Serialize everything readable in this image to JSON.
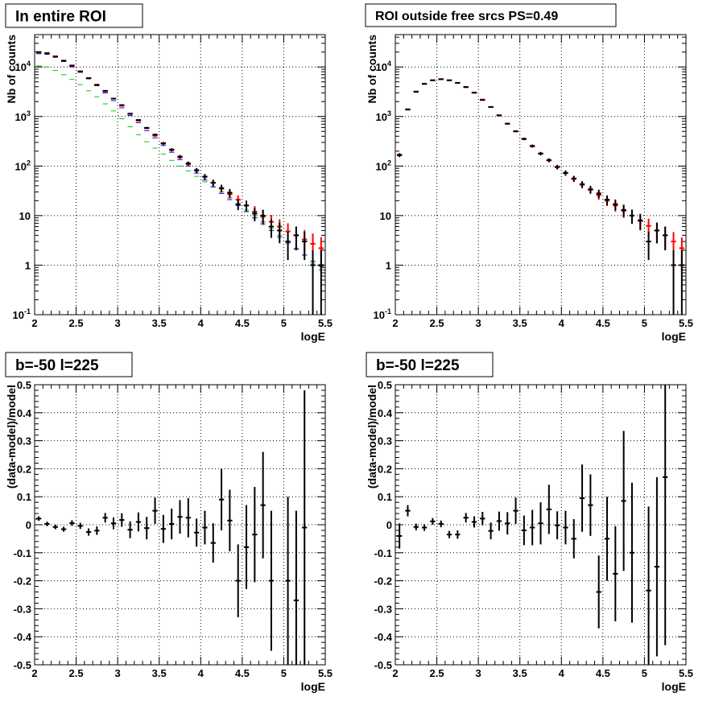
{
  "chart_data": [
    {
      "type": "errorbar",
      "title": "In entire ROI",
      "xlabel": "logE",
      "ylabel": "Nb of counts",
      "xlim": [
        2,
        5.5
      ],
      "ylim": [
        0.1,
        45000
      ],
      "ylog": true,
      "grid": true,
      "x_ticks": [
        "2",
        "2.5",
        "3",
        "3.5",
        "4",
        "4.5",
        "5",
        "5.5"
      ],
      "y_ticks": [
        {
          "base": "10",
          "exp": "-1",
          "value": 0.1
        },
        {
          "base": "1",
          "exp": "",
          "value": 1
        },
        {
          "base": "10",
          "exp": "",
          "value": 10
        },
        {
          "base": "10",
          "exp": "2",
          "value": 100
        },
        {
          "base": "10",
          "exp": "3",
          "value": 1000
        },
        {
          "base": "10",
          "exp": "4",
          "value": 10000
        }
      ],
      "bin_width": 0.1,
      "series": [
        {
          "color": "#00cc00",
          "x": [
            2.05,
            2.15,
            2.25,
            2.35,
            2.45,
            2.55,
            2.65,
            2.75,
            2.85,
            2.95,
            3.05,
            3.15,
            3.25,
            3.35,
            3.45,
            3.55,
            3.65,
            3.75,
            3.85,
            3.95,
            4.05,
            4.15,
            4.25,
            4.35,
            4.45,
            4.55,
            4.65,
            4.75,
            4.85,
            4.95,
            5.05,
            5.15,
            5.25,
            5.35,
            5.45
          ],
          "y": [
            10500,
            10000,
            8500,
            7000,
            5600,
            4400,
            3300,
            2500,
            1800,
            1300,
            900,
            620,
            430,
            310,
            230,
            175,
            130,
            100,
            80,
            62,
            48,
            38,
            30,
            23,
            17,
            13,
            10,
            7.5,
            5.5,
            4,
            3,
            2.2,
            1.6,
            1.1,
            0.8
          ]
        },
        {
          "color": "#0000ff",
          "x": [
            2.05,
            2.15,
            2.25,
            2.35,
            2.45,
            2.55,
            2.65,
            2.75,
            2.85,
            2.95,
            3.05,
            3.15,
            3.25,
            3.35,
            3.45,
            3.55,
            3.65,
            3.75,
            3.85,
            3.95,
            4.05,
            4.15,
            4.25,
            4.35,
            4.45,
            4.55,
            4.65,
            4.75,
            4.85,
            4.95,
            5.05,
            5.15,
            5.25,
            5.35,
            5.45
          ],
          "y": [
            18500,
            18000,
            16000,
            13000,
            10000,
            7800,
            5800,
            4200,
            3000,
            2100,
            1500,
            1050,
            750,
            520,
            370,
            260,
            190,
            135,
            100,
            72,
            52,
            38,
            28,
            21,
            16,
            12,
            9,
            6.8,
            5,
            3.7,
            2.8,
            2.1,
            1.6,
            1.2,
            0.95
          ]
        },
        {
          "color": "#ff0000",
          "x": [
            2.05,
            2.15,
            2.25,
            2.35,
            2.45,
            2.55,
            2.65,
            2.75,
            2.85,
            2.95,
            3.05,
            3.15,
            3.25,
            3.35,
            3.45,
            3.55,
            3.65,
            3.75,
            3.85,
            3.95,
            4.05,
            4.15,
            4.25,
            4.35,
            4.45,
            4.55,
            4.65,
            4.75,
            4.85,
            4.95,
            5.05,
            5.15,
            5.25,
            5.35,
            5.45
          ],
          "y": [
            19500,
            19000,
            16500,
            13500,
            10500,
            8200,
            6000,
            4400,
            3200,
            2300,
            1650,
            1150,
            820,
            580,
            410,
            290,
            210,
            150,
            110,
            82,
            61,
            46,
            35,
            27,
            21,
            16,
            12,
            9.5,
            7.5,
            6,
            4.8,
            4,
            3.3,
            2.7,
            2.2
          ],
          "yerr_rel": [
            0.01,
            0.01,
            0.01,
            0.01,
            0.01,
            0.01,
            0.015,
            0.015,
            0.02,
            0.02,
            0.025,
            0.03,
            0.035,
            0.04,
            0.05,
            0.06,
            0.07,
            0.08,
            0.1,
            0.11,
            0.13,
            0.15,
            0.17,
            0.19,
            0.22,
            0.25,
            0.29,
            0.32,
            0.37,
            0.41,
            0.46,
            0.5,
            0.55,
            0.61,
            0.67
          ]
        },
        {
          "color": "#000000",
          "x": [
            2.05,
            2.15,
            2.25,
            2.35,
            2.45,
            2.55,
            2.65,
            2.75,
            2.85,
            2.95,
            3.05,
            3.15,
            3.25,
            3.35,
            3.45,
            3.55,
            3.65,
            3.75,
            3.85,
            3.95,
            4.05,
            4.15,
            4.25,
            4.35,
            4.45,
            4.55,
            4.65,
            4.75,
            4.85,
            4.95,
            5.05,
            5.15,
            5.25,
            5.35,
            5.45
          ],
          "y": [
            20000,
            19000,
            16000,
            13200,
            10700,
            8100,
            5900,
            4300,
            3300,
            2300,
            1700,
            1130,
            850,
            590,
            430,
            285,
            215,
            155,
            113,
            82,
            61,
            46,
            36,
            29,
            17,
            16,
            11,
            10,
            6,
            5,
            3,
            4,
            3,
            1,
            1
          ],
          "yerr_rel": [
            0.007,
            0.007,
            0.008,
            0.009,
            0.01,
            0.011,
            0.013,
            0.015,
            0.017,
            0.021,
            0.024,
            0.03,
            0.034,
            0.041,
            0.048,
            0.059,
            0.068,
            0.08,
            0.094,
            0.11,
            0.128,
            0.147,
            0.167,
            0.186,
            0.243,
            0.25,
            0.3,
            0.316,
            0.408,
            0.447,
            0.577,
            0.5,
            0.577,
            1.0,
            1.0
          ]
        }
      ]
    },
    {
      "type": "errorbar",
      "title": "ROI outside free srcs PS=0.49",
      "xlabel": "logE",
      "ylabel": "Nb of counts",
      "xlim": [
        2,
        5.5
      ],
      "ylim": [
        0.1,
        45000
      ],
      "ylog": true,
      "grid": true,
      "x_ticks": [
        "2",
        "2.5",
        "3",
        "3.5",
        "4",
        "4.5",
        "5",
        "5.5"
      ],
      "y_ticks": [
        {
          "base": "10",
          "exp": "-1",
          "value": 0.1
        },
        {
          "base": "1",
          "exp": "",
          "value": 1
        },
        {
          "base": "10",
          "exp": "",
          "value": 10
        },
        {
          "base": "10",
          "exp": "2",
          "value": 100
        },
        {
          "base": "10",
          "exp": "3",
          "value": 1000
        },
        {
          "base": "10",
          "exp": "4",
          "value": 10000
        }
      ],
      "bin_width": 0.1,
      "series": [
        {
          "color": "#ff0000",
          "x": [
            2.05,
            2.15,
            2.25,
            2.35,
            2.45,
            2.55,
            2.65,
            2.75,
            2.85,
            2.95,
            3.05,
            3.15,
            3.25,
            3.35,
            3.45,
            3.55,
            3.65,
            3.75,
            3.85,
            3.95,
            4.05,
            4.15,
            4.25,
            4.35,
            4.45,
            4.55,
            4.65,
            4.75,
            4.85,
            4.95,
            5.05,
            5.15,
            5.25,
            5.35,
            5.45
          ],
          "y": [
            170,
            1400,
            3200,
            4600,
            5400,
            5700,
            5400,
            4800,
            3900,
            3000,
            2200,
            1550,
            1050,
            720,
            500,
            350,
            250,
            180,
            130,
            95,
            72,
            55,
            42,
            33,
            26,
            20,
            16,
            12.5,
            10,
            7.8,
            6.2,
            5,
            4,
            3,
            2.2
          ],
          "yerr_rel": [
            0.077,
            0.027,
            0.018,
            0.015,
            0.014,
            0.013,
            0.014,
            0.014,
            0.016,
            0.018,
            0.021,
            0.025,
            0.031,
            0.037,
            0.045,
            0.053,
            0.063,
            0.075,
            0.088,
            0.1,
            0.12,
            0.135,
            0.155,
            0.175,
            0.2,
            0.22,
            0.25,
            0.28,
            0.32,
            0.36,
            0.4,
            0.45,
            0.5,
            0.55,
            0.65
          ]
        },
        {
          "color": "#000000",
          "x": [
            2.05,
            2.15,
            2.25,
            2.35,
            2.45,
            2.55,
            2.65,
            2.75,
            2.85,
            2.95,
            3.05,
            3.15,
            3.25,
            3.35,
            3.45,
            3.55,
            3.65,
            3.75,
            3.85,
            3.95,
            4.05,
            4.15,
            4.25,
            4.35,
            4.45,
            4.55,
            4.65,
            4.75,
            4.85,
            4.95,
            5.05,
            5.15,
            5.25,
            5.35,
            5.45
          ],
          "y": [
            165,
            1380,
            3150,
            4550,
            5380,
            5650,
            5380,
            4750,
            3950,
            3050,
            2150,
            1560,
            1060,
            715,
            505,
            355,
            255,
            178,
            132,
            96,
            73,
            56,
            43,
            34,
            28,
            21,
            17,
            13,
            10,
            8,
            3,
            5,
            4,
            1,
            1
          ],
          "yerr_rel": [
            0.078,
            0.027,
            0.018,
            0.015,
            0.014,
            0.013,
            0.014,
            0.015,
            0.016,
            0.018,
            0.022,
            0.025,
            0.031,
            0.037,
            0.044,
            0.053,
            0.063,
            0.075,
            0.087,
            0.102,
            0.117,
            0.134,
            0.152,
            0.171,
            0.189,
            0.218,
            0.243,
            0.277,
            0.316,
            0.354,
            0.577,
            0.447,
            0.5,
            1.0,
            1.0
          ]
        }
      ]
    },
    {
      "type": "errorbar",
      "title": "b=-50 l=225",
      "xlabel": "logE",
      "ylabel": "(data-model)/model",
      "xlim": [
        2,
        5.5
      ],
      "ylim": [
        -0.5,
        0.5
      ],
      "ylog": false,
      "grid": true,
      "x_ticks": [
        "2",
        "2.5",
        "3",
        "3.5",
        "4",
        "4.5",
        "5",
        "5.5"
      ],
      "y_ticks": [
        "-0.5",
        "-0.4",
        "-0.3",
        "-0.2",
        "-0.1",
        "0",
        "0.1",
        "0.2",
        "0.3",
        "0.4",
        "0.5"
      ],
      "bin_width": 0.1,
      "series": [
        {
          "color": "#000000",
          "x": [
            2.05,
            2.15,
            2.25,
            2.35,
            2.45,
            2.55,
            2.65,
            2.75,
            2.85,
            2.95,
            3.05,
            3.15,
            3.25,
            3.35,
            3.45,
            3.55,
            3.65,
            3.75,
            3.85,
            3.95,
            4.05,
            4.15,
            4.25,
            4.35,
            4.45,
            4.55,
            4.65,
            4.75,
            4.85,
            5.05,
            5.15,
            5.25
          ],
          "y": [
            0.022,
            0.003,
            -0.008,
            -0.016,
            0.006,
            -0.004,
            -0.026,
            -0.021,
            0.025,
            0.005,
            0.017,
            -0.018,
            0.01,
            -0.012,
            0.05,
            -0.015,
            0.003,
            0.028,
            0.025,
            -0.028,
            -0.01,
            -0.065,
            0.09,
            0.015,
            -0.2,
            -0.08,
            -0.035,
            0.07,
            -0.2,
            -0.2,
            -0.27,
            -0.01
          ],
          "yerr": [
            0.008,
            0.008,
            0.008,
            0.009,
            0.01,
            0.011,
            0.013,
            0.015,
            0.017,
            0.021,
            0.024,
            0.03,
            0.034,
            0.04,
            0.047,
            0.05,
            0.055,
            0.06,
            0.07,
            0.05,
            0.06,
            0.07,
            0.11,
            0.11,
            0.13,
            0.15,
            0.17,
            0.19,
            0.25,
            0.3,
            0.32,
            0.49
          ]
        }
      ]
    },
    {
      "type": "errorbar",
      "title": "b=-50 l=225",
      "xlabel": "logE",
      "ylabel": "(data-model)/model",
      "xlim": [
        2,
        5.5
      ],
      "ylim": [
        -0.5,
        0.5
      ],
      "ylog": false,
      "grid": true,
      "x_ticks": [
        "2",
        "2.5",
        "3",
        "3.5",
        "4",
        "4.5",
        "5",
        "5.5"
      ],
      "y_ticks": [
        "-0.5",
        "-0.4",
        "-0.3",
        "-0.2",
        "-0.1",
        "0",
        "0.1",
        "0.2",
        "0.3",
        "0.4",
        "0.5"
      ],
      "bin_width": 0.1,
      "series": [
        {
          "color": "#000000",
          "x": [
            2.05,
            2.15,
            2.25,
            2.35,
            2.45,
            2.55,
            2.65,
            2.75,
            2.85,
            2.95,
            3.05,
            3.15,
            3.25,
            3.35,
            3.45,
            3.55,
            3.65,
            3.75,
            3.85,
            3.95,
            4.05,
            4.15,
            4.25,
            4.35,
            4.45,
            4.55,
            4.65,
            4.75,
            4.85,
            5.05,
            5.15,
            5.25
          ],
          "y": [
            -0.04,
            0.05,
            -0.008,
            -0.01,
            0.012,
            0.003,
            -0.035,
            -0.035,
            0.025,
            0.01,
            0.022,
            -0.022,
            0.013,
            0.005,
            0.05,
            -0.02,
            -0.01,
            0.005,
            0.055,
            -0.002,
            -0.01,
            -0.05,
            0.095,
            0.07,
            -0.24,
            -0.05,
            -0.175,
            0.085,
            -0.1,
            -0.235,
            -0.15,
            0.17
          ],
          "yerr": [
            0.045,
            0.02,
            0.012,
            0.012,
            0.012,
            0.012,
            0.013,
            0.015,
            0.017,
            0.02,
            0.024,
            0.03,
            0.034,
            0.04,
            0.047,
            0.053,
            0.063,
            0.075,
            0.088,
            0.05,
            0.06,
            0.07,
            0.12,
            0.11,
            0.13,
            0.15,
            0.17,
            0.25,
            0.25,
            0.3,
            0.32,
            0.6
          ]
        }
      ]
    }
  ]
}
